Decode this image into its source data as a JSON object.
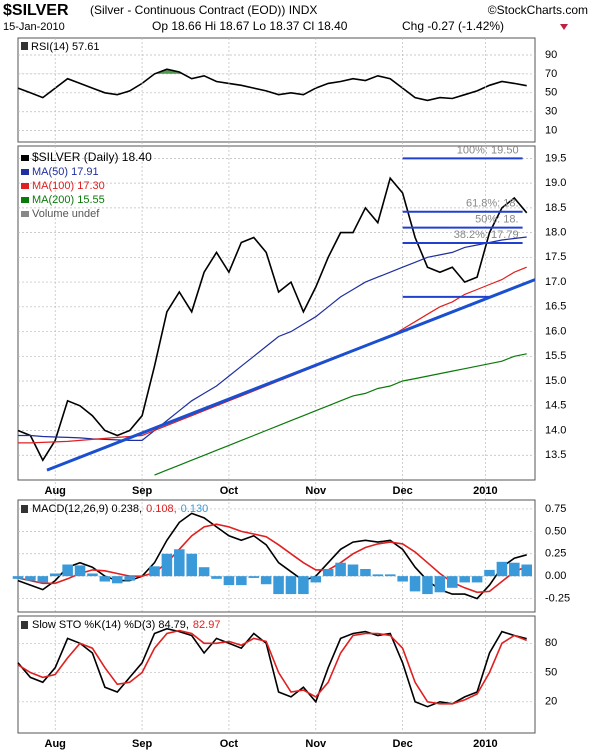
{
  "header": {
    "title": "$SILVER",
    "subtitle": "(Silver - Continuous Contract (EOD)) INDX",
    "date": "15-Jan-2010",
    "quote": "Op 18.66 Hi 18.67 Lo 18.37 Cl 18.40",
    "change": "Chg -0.27 (-1.42%)",
    "credit": "©StockCharts.com"
  },
  "chart_data": [
    {
      "type": "line",
      "title": "RSI(14) 57.61",
      "x": [
        0,
        3,
        6,
        9,
        12,
        15,
        18,
        21,
        24,
        27,
        30,
        33,
        36,
        39,
        42,
        45,
        48,
        51,
        54,
        57,
        60,
        63,
        66,
        69,
        72,
        75,
        78,
        81,
        84,
        87,
        90,
        93,
        96,
        99,
        102,
        105,
        108,
        111,
        114,
        117,
        120,
        123
      ],
      "xlim": [
        0,
        125
      ],
      "ylim": [
        -2,
        108
      ],
      "yticks": [
        90,
        70,
        50,
        30,
        10
      ],
      "fill_above": 70,
      "fill_color": "#4f9a4f",
      "series": [
        {
          "color": "#000000",
          "values": [
            55,
            50,
            45,
            55,
            65,
            60,
            55,
            50,
            48,
            52,
            60,
            70,
            75,
            72,
            65,
            68,
            62,
            60,
            58,
            55,
            52,
            48,
            50,
            48,
            55,
            60,
            62,
            65,
            63,
            68,
            65,
            55,
            45,
            42,
            45,
            44,
            48,
            52,
            58,
            62,
            60,
            57.6
          ]
        }
      ]
    },
    {
      "type": "line",
      "x": [
        0,
        3,
        6,
        9,
        12,
        15,
        18,
        21,
        24,
        27,
        30,
        33,
        36,
        39,
        42,
        45,
        48,
        51,
        54,
        57,
        60,
        63,
        66,
        69,
        72,
        75,
        78,
        81,
        84,
        87,
        90,
        93,
        96,
        99,
        102,
        105,
        108,
        111,
        114,
        117,
        120,
        123
      ],
      "xlim": [
        0,
        125
      ],
      "ylim": [
        13.0,
        19.75
      ],
      "yticks": [
        13.5,
        {
          "value": 14,
          "label": "14.0"
        },
        14.5,
        {
          "value": 15,
          "label": "15.0"
        },
        15.5,
        {
          "value": 16,
          "label": "16.0"
        },
        16.5,
        {
          "value": 17,
          "label": "17.0"
        },
        17.5,
        {
          "value": 18,
          "label": "18.0"
        },
        18.5,
        {
          "value": 19,
          "label": "19.0"
        },
        19.5
      ],
      "xticks": [
        {
          "value": 9,
          "label": "Aug"
        },
        {
          "value": 30,
          "label": "Sep"
        },
        {
          "value": 51,
          "label": "Oct"
        },
        {
          "value": 72,
          "label": "Nov"
        },
        {
          "value": 93,
          "label": "Dec"
        },
        {
          "value": 113,
          "label": "2010"
        }
      ],
      "volume_label": "Volume undef",
      "series": [
        {
          "name": "$SILVER (Daily) 18.40",
          "color": "#000000",
          "values": [
            14.0,
            13.9,
            13.4,
            13.8,
            14.6,
            14.5,
            14.3,
            14.0,
            13.9,
            14.0,
            14.3,
            15.3,
            16.4,
            16.8,
            16.4,
            17.2,
            17.6,
            17.2,
            17.8,
            17.9,
            17.6,
            16.8,
            17.0,
            16.4,
            16.9,
            17.5,
            18.0,
            18.0,
            18.5,
            18.2,
            19.1,
            18.8,
            17.9,
            17.3,
            17.2,
            17.3,
            17.0,
            17.1,
            18.0,
            18.5,
            18.7,
            18.4
          ]
        },
        {
          "name": "MA(50) 17.91",
          "color": "#1f2f9f",
          "values": [
            13.9,
            13.9,
            13.88,
            13.87,
            13.86,
            13.85,
            13.83,
            13.82,
            13.81,
            13.8,
            13.8,
            14.0,
            14.2,
            14.4,
            14.6,
            14.75,
            14.9,
            15.1,
            15.3,
            15.5,
            15.7,
            15.9,
            16.0,
            16.15,
            16.3,
            16.5,
            16.7,
            16.85,
            17.0,
            17.1,
            17.2,
            17.3,
            17.4,
            17.5,
            17.55,
            17.6,
            17.7,
            17.75,
            17.8,
            17.85,
            17.88,
            17.91
          ]
        },
        {
          "name": "MA(100) 17.30",
          "color": "#e02020",
          "values": [
            13.75,
            13.75,
            13.76,
            13.77,
            13.78,
            13.8,
            13.82,
            13.84,
            13.86,
            13.88,
            13.9,
            14.0,
            14.1,
            14.2,
            14.3,
            14.4,
            14.5,
            14.6,
            14.7,
            14.8,
            14.9,
            15.0,
            15.1,
            15.2,
            15.3,
            15.4,
            15.5,
            15.6,
            15.7,
            15.8,
            15.9,
            16.05,
            16.2,
            16.35,
            16.5,
            16.6,
            16.75,
            16.85,
            16.95,
            17.05,
            17.2,
            17.3
          ]
        },
        {
          "name": "MA(200) 15.55",
          "color": "#0a7a0a",
          "values": [
            null,
            null,
            null,
            null,
            null,
            null,
            null,
            null,
            null,
            null,
            null,
            13.1,
            13.2,
            13.3,
            13.4,
            13.5,
            13.6,
            13.7,
            13.8,
            13.9,
            14.0,
            14.1,
            14.2,
            14.3,
            14.4,
            14.5,
            14.6,
            14.7,
            14.75,
            14.85,
            14.9,
            15.0,
            15.05,
            15.1,
            15.15,
            15.2,
            15.25,
            15.3,
            15.35,
            15.4,
            15.5,
            15.55
          ]
        }
      ],
      "trendline": {
        "color": "#1a4fd0",
        "x": [
          7,
          125
        ],
        "values": [
          13.2,
          17.05
        ]
      },
      "fib_color": "#2040d0",
      "fib_levels": [
        {
          "label": "100%: 19.50",
          "value": 19.5,
          "x": [
            93,
            122
          ]
        },
        {
          "label": "61.8%: 18.",
          "value": 18.42,
          "x": [
            93,
            122
          ]
        },
        {
          "label": "50%: 18.",
          "value": 18.1,
          "x": [
            93,
            122
          ]
        },
        {
          "label": "38.2%: 17.79",
          "value": 17.79,
          "x": [
            93,
            122
          ]
        },
        {
          "value": 16.7,
          "x": [
            93,
            114
          ]
        }
      ]
    },
    {
      "type": "line",
      "x": [
        0,
        3,
        6,
        9,
        12,
        15,
        18,
        21,
        24,
        27,
        30,
        33,
        36,
        39,
        42,
        45,
        48,
        51,
        54,
        57,
        60,
        63,
        66,
        69,
        72,
        75,
        78,
        81,
        84,
        87,
        90,
        93,
        96,
        99,
        102,
        105,
        108,
        111,
        114,
        117,
        120,
        123
      ],
      "xlim": [
        0,
        125
      ],
      "ylim": [
        -0.4,
        0.85
      ],
      "yticks": [
        0.75,
        {
          "value": 0.5,
          "label": "0.50"
        },
        0.25,
        {
          "value": 0,
          "label": "0.00"
        },
        -0.25
      ],
      "series": [
        {
          "name": "MACD(12,26,9) 0.238,",
          "color": "#000000",
          "values": [
            -0.05,
            -0.1,
            -0.15,
            -0.05,
            0.1,
            0.15,
            0.1,
            0.0,
            -0.05,
            -0.05,
            0.0,
            0.15,
            0.4,
            0.6,
            0.7,
            0.65,
            0.55,
            0.45,
            0.4,
            0.45,
            0.35,
            0.15,
            0.05,
            -0.05,
            0.0,
            0.15,
            0.3,
            0.38,
            0.4,
            0.38,
            0.4,
            0.3,
            0.1,
            -0.05,
            -0.15,
            -0.2,
            -0.2,
            -0.25,
            -0.1,
            0.1,
            0.2,
            0.238
          ]
        },
        {
          "name": "0.108,",
          "color": "#e02020",
          "values": [
            -0.02,
            -0.05,
            -0.08,
            -0.08,
            -0.03,
            0.03,
            0.07,
            0.06,
            0.03,
            0.0,
            0.0,
            0.04,
            0.15,
            0.3,
            0.45,
            0.55,
            0.58,
            0.55,
            0.5,
            0.47,
            0.44,
            0.35,
            0.25,
            0.15,
            0.07,
            0.07,
            0.15,
            0.25,
            0.32,
            0.36,
            0.38,
            0.36,
            0.27,
            0.15,
            0.03,
            -0.07,
            -0.13,
            -0.18,
            -0.17,
            -0.06,
            0.05,
            0.108
          ]
        },
        {
          "name": "0.130",
          "color": "#3a9ad9",
          "kind": "bar",
          "values": [
            -0.03,
            -0.05,
            -0.07,
            0.03,
            0.13,
            0.12,
            0.03,
            -0.06,
            -0.08,
            -0.05,
            0.0,
            0.11,
            0.25,
            0.3,
            0.25,
            0.1,
            -0.03,
            -0.1,
            -0.1,
            -0.02,
            -0.09,
            -0.2,
            -0.2,
            -0.2,
            -0.07,
            0.08,
            0.15,
            0.13,
            0.08,
            0.02,
            0.02,
            -0.06,
            -0.17,
            -0.2,
            -0.18,
            -0.13,
            -0.07,
            -0.07,
            0.07,
            0.16,
            0.15,
            0.13
          ]
        }
      ]
    },
    {
      "type": "line",
      "x": [
        0,
        3,
        6,
        9,
        12,
        15,
        18,
        21,
        24,
        27,
        30,
        33,
        36,
        39,
        42,
        45,
        48,
        51,
        54,
        57,
        60,
        63,
        66,
        69,
        72,
        75,
        78,
        81,
        84,
        87,
        90,
        93,
        96,
        99,
        102,
        105,
        108,
        111,
        114,
        117,
        120,
        123
      ],
      "xlim": [
        0,
        125
      ],
      "ylim": [
        -12,
        108
      ],
      "yticks": [
        80,
        50,
        20
      ],
      "xticks": [
        {
          "value": 9,
          "label": "Aug"
        },
        {
          "value": 30,
          "label": "Sep"
        },
        {
          "value": 51,
          "label": "Oct"
        },
        {
          "value": 72,
          "label": "Nov"
        },
        {
          "value": 93,
          "label": "Dec"
        },
        {
          "value": 113,
          "label": "2010"
        }
      ],
      "series": [
        {
          "name": "Slow STO %K(14) %D(3) 84.79,",
          "color": "#000000",
          "values": [
            60,
            45,
            40,
            55,
            85,
            80,
            70,
            35,
            30,
            45,
            60,
            90,
            95,
            92,
            88,
            70,
            85,
            80,
            75,
            90,
            80,
            30,
            25,
            35,
            20,
            55,
            85,
            90,
            92,
            88,
            90,
            60,
            20,
            15,
            20,
            18,
            25,
            30,
            70,
            92,
            88,
            84.79
          ]
        },
        {
          "name": "82.97",
          "color": "#e02020",
          "values": [
            58,
            50,
            45,
            48,
            65,
            80,
            75,
            55,
            38,
            40,
            50,
            75,
            90,
            93,
            90,
            80,
            80,
            82,
            78,
            85,
            82,
            50,
            30,
            32,
            25,
            40,
            70,
            88,
            90,
            90,
            88,
            75,
            40,
            20,
            18,
            18,
            22,
            28,
            50,
            80,
            88,
            82.97
          ]
        }
      ]
    }
  ]
}
